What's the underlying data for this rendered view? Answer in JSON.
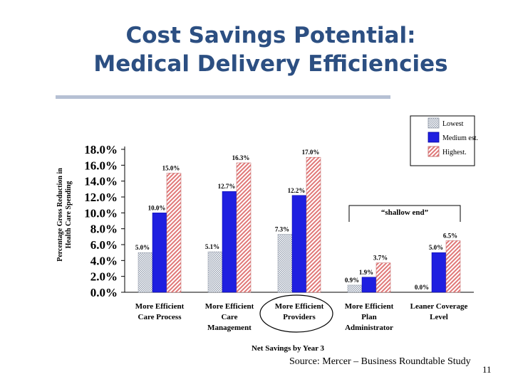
{
  "slide": {
    "title_line1": "Cost Savings Potential:",
    "title_line2": "Medical Delivery Efficiencies",
    "source": "Source: Mercer – Business Roundtable Study",
    "page_number": "11"
  },
  "colors": {
    "title": "#2c4f82",
    "lowest": "#b0b8c6",
    "medium": "#1f1fe0",
    "highest": "#f2b8b8"
  },
  "chart_data": {
    "type": "bar",
    "ylabel_line1": "Percentage Gross Reduction in",
    "ylabel_line2": "Health Care Spending",
    "xlabel": "Net Savings by Year 3",
    "ylim": [
      0,
      18
    ],
    "yticks": [
      "0.0%",
      "2.0%",
      "4.0%",
      "6.0%",
      "8.0%",
      "10.0%",
      "12.0%",
      "14.0%",
      "16.0%",
      "18.0%"
    ],
    "categories": [
      [
        "More Efficient",
        "Care Process"
      ],
      [
        "More Efficient",
        "Care",
        "Management"
      ],
      [
        "More Efficient",
        "Providers"
      ],
      [
        "More Efficient",
        "Plan",
        "Administrator"
      ],
      [
        "Leaner Coverage",
        "Level"
      ]
    ],
    "series": [
      {
        "name": "Lowest",
        "values": [
          5.0,
          5.1,
          7.3,
          0.9,
          0.0
        ],
        "labels": [
          "5.0%",
          "5.1%",
          "7.3%",
          "0.9%",
          "0.0%"
        ]
      },
      {
        "name": "Medium est.",
        "values": [
          10.0,
          12.7,
          12.2,
          1.9,
          5.0
        ],
        "labels": [
          "10.0%",
          "12.7%",
          "12.2%",
          "1.9%",
          "5.0%"
        ]
      },
      {
        "name": "Highest.",
        "values": [
          15.0,
          16.3,
          17.0,
          3.7,
          6.5
        ],
        "labels": [
          "15.0%",
          "16.3%",
          "17.0%",
          "3.7%",
          "6.5%"
        ]
      }
    ],
    "legend_position": "top-right",
    "annotation": "“shallow end”",
    "grid": false
  }
}
